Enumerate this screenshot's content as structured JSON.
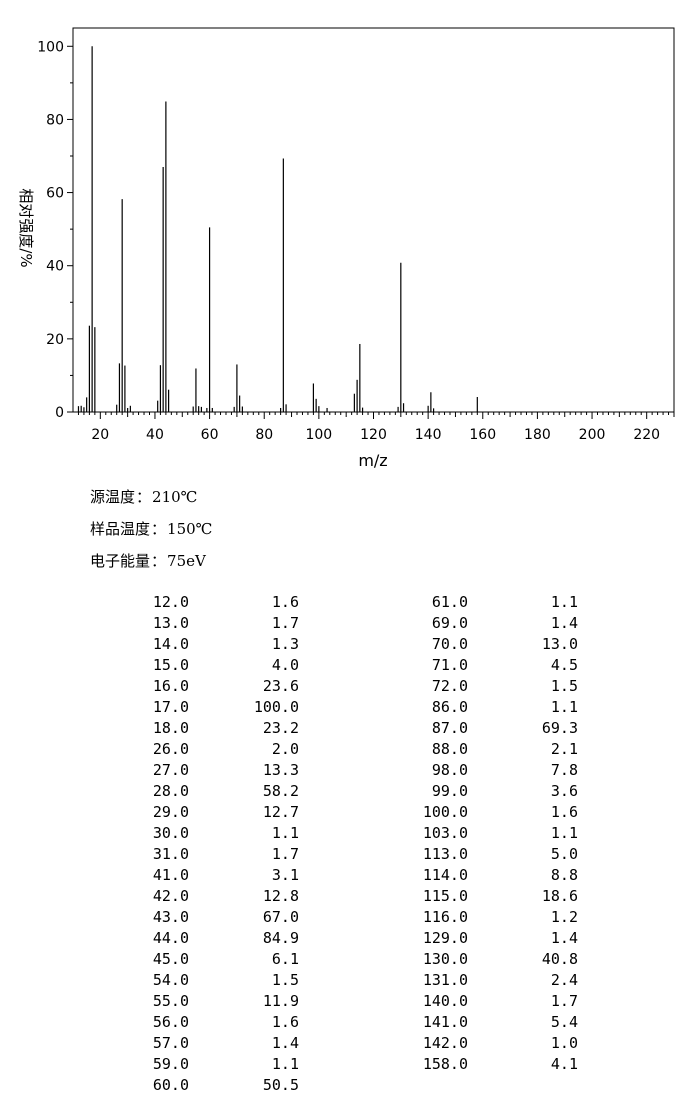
{
  "chart_data": {
    "type": "bar",
    "title": "",
    "xlabel": "m/z",
    "ylabel": "相对强度/%",
    "xlim": [
      10,
      230
    ],
    "ylim": [
      0,
      105
    ],
    "x_ticks": [
      20,
      40,
      60,
      80,
      100,
      120,
      140,
      160,
      180,
      200,
      220
    ],
    "y_ticks": [
      0,
      20,
      40,
      60,
      80,
      100
    ],
    "grid": false,
    "series": [
      {
        "x": [
          12,
          13,
          14,
          15,
          16,
          17,
          18,
          26,
          27,
          28,
          29,
          30,
          31,
          41,
          42,
          43,
          44,
          45,
          54,
          55,
          56,
          57,
          59,
          60,
          61,
          69,
          70,
          71,
          72,
          86,
          87,
          88,
          98,
          99,
          100,
          103,
          113,
          114,
          115,
          116,
          129,
          130,
          131,
          140,
          141,
          142,
          158
        ],
        "values": [
          1.6,
          1.7,
          1.3,
          4.0,
          23.6,
          100.0,
          23.2,
          2.0,
          13.3,
          58.2,
          12.7,
          1.1,
          1.7,
          3.1,
          12.8,
          67.0,
          84.9,
          6.1,
          1.5,
          11.9,
          1.6,
          1.4,
          1.1,
          50.5,
          1.1,
          1.4,
          13.0,
          4.5,
          1.5,
          1.1,
          69.3,
          2.1,
          7.8,
          3.6,
          1.6,
          1.1,
          5.0,
          8.8,
          18.6,
          1.2,
          1.4,
          40.8,
          2.4,
          1.7,
          5.4,
          1.0,
          4.1
        ]
      }
    ]
  },
  "conditions": {
    "source_temp_label": "源温度",
    "source_temp_value": "210℃",
    "sample_temp_label": "样品温度",
    "sample_temp_value": "150℃",
    "electron_energy_label": "电子能量",
    "electron_energy_value": "75eV",
    "separator": "："
  },
  "peak_table": {
    "left": [
      [
        "12.0",
        "1.6"
      ],
      [
        "13.0",
        "1.7"
      ],
      [
        "14.0",
        "1.3"
      ],
      [
        "15.0",
        "4.0"
      ],
      [
        "16.0",
        "23.6"
      ],
      [
        "17.0",
        "100.0"
      ],
      [
        "18.0",
        "23.2"
      ],
      [
        "26.0",
        "2.0"
      ],
      [
        "27.0",
        "13.3"
      ],
      [
        "28.0",
        "58.2"
      ],
      [
        "29.0",
        "12.7"
      ],
      [
        "30.0",
        "1.1"
      ],
      [
        "31.0",
        "1.7"
      ],
      [
        "41.0",
        "3.1"
      ],
      [
        "42.0",
        "12.8"
      ],
      [
        "43.0",
        "67.0"
      ],
      [
        "44.0",
        "84.9"
      ],
      [
        "45.0",
        "6.1"
      ],
      [
        "54.0",
        "1.5"
      ],
      [
        "55.0",
        "11.9"
      ],
      [
        "56.0",
        "1.6"
      ],
      [
        "57.0",
        "1.4"
      ],
      [
        "59.0",
        "1.1"
      ],
      [
        "60.0",
        "50.5"
      ]
    ],
    "right": [
      [
        "61.0",
        "1.1"
      ],
      [
        "69.0",
        "1.4"
      ],
      [
        "70.0",
        "13.0"
      ],
      [
        "71.0",
        "4.5"
      ],
      [
        "72.0",
        "1.5"
      ],
      [
        "86.0",
        "1.1"
      ],
      [
        "87.0",
        "69.3"
      ],
      [
        "88.0",
        "2.1"
      ],
      [
        "98.0",
        "7.8"
      ],
      [
        "99.0",
        "3.6"
      ],
      [
        "100.0",
        "1.6"
      ],
      [
        "103.0",
        "1.1"
      ],
      [
        "113.0",
        "5.0"
      ],
      [
        "114.0",
        "8.8"
      ],
      [
        "115.0",
        "18.6"
      ],
      [
        "116.0",
        "1.2"
      ],
      [
        "129.0",
        "1.4"
      ],
      [
        "130.0",
        "40.8"
      ],
      [
        "131.0",
        "2.4"
      ],
      [
        "140.0",
        "1.7"
      ],
      [
        "141.0",
        "5.4"
      ],
      [
        "142.0",
        "1.0"
      ],
      [
        "158.0",
        "4.1"
      ]
    ]
  }
}
